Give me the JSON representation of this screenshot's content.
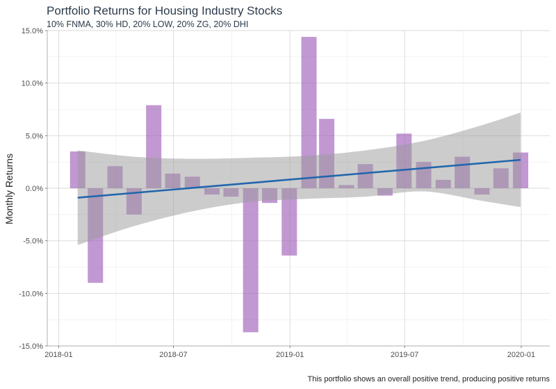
{
  "chart_data": {
    "type": "bar",
    "title": "Portfolio Returns for Housing Industry Stocks",
    "subtitle": "10% FNMA, 30% HD, 20% LOW, 20% ZG, 20% DHI",
    "caption": "This portfolio shows an overall positive trend, producing positive returns",
    "ylabel": "Monthly Returns",
    "xlabel": "",
    "ylim": [
      -0.15,
      0.15
    ],
    "yticks": [
      0.15,
      0.1,
      0.05,
      0.0,
      -0.05,
      -0.1,
      -0.15
    ],
    "ytick_labels": [
      "15.0%",
      "10.0%",
      "5.0%",
      "0.0%",
      "-5.0%",
      "-10.0%",
      "-15.0%"
    ],
    "xlim": [
      "2017-12-14",
      "2020-02-15"
    ],
    "xticks": [
      "2018-01-01",
      "2018-07-01",
      "2019-01-01",
      "2019-07-01",
      "2020-01-01"
    ],
    "xtick_labels": [
      "2018-01",
      "2018-07",
      "2019-01",
      "2019-07",
      "2020-01"
    ],
    "grid": true,
    "bar_color": "#9b59b6",
    "trend_color": "#2166ac",
    "band_color": "#999999",
    "series": [
      {
        "x": [
          "2018-01-31",
          "2018-02-28",
          "2018-03-31",
          "2018-04-30",
          "2018-05-31",
          "2018-06-30",
          "2018-07-31",
          "2018-08-31",
          "2018-09-30",
          "2018-10-31",
          "2018-11-30",
          "2018-12-31",
          "2019-01-31",
          "2019-02-28",
          "2019-03-31",
          "2019-04-30",
          "2019-05-31",
          "2019-06-30",
          "2019-07-31",
          "2019-08-31",
          "2019-09-30",
          "2019-10-31",
          "2019-11-30",
          "2019-12-31"
        ],
        "values": [
          0.035,
          -0.09,
          0.021,
          -0.025,
          0.079,
          0.014,
          0.011,
          -0.006,
          -0.008,
          -0.137,
          -0.014,
          -0.064,
          0.144,
          0.066,
          0.003,
          0.023,
          -0.007,
          0.052,
          0.025,
          0.008,
          0.03,
          -0.006,
          0.019,
          0.034
        ]
      }
    ],
    "trend": {
      "type": "linear",
      "start": -0.009,
      "end": 0.027
    },
    "confidence_band": {
      "x": [
        "2018-01-31",
        "2018-04-30",
        "2018-07-31",
        "2018-10-31",
        "2019-01-31",
        "2019-04-30",
        "2019-07-31",
        "2019-10-31",
        "2019-12-31"
      ],
      "upper": [
        0.036,
        0.03,
        0.028,
        0.029,
        0.031,
        0.036,
        0.045,
        0.06,
        0.072
      ],
      "lower": [
        -0.054,
        -0.036,
        -0.022,
        -0.013,
        -0.01,
        -0.008,
        -0.003,
        -0.012,
        -0.018
      ]
    }
  }
}
